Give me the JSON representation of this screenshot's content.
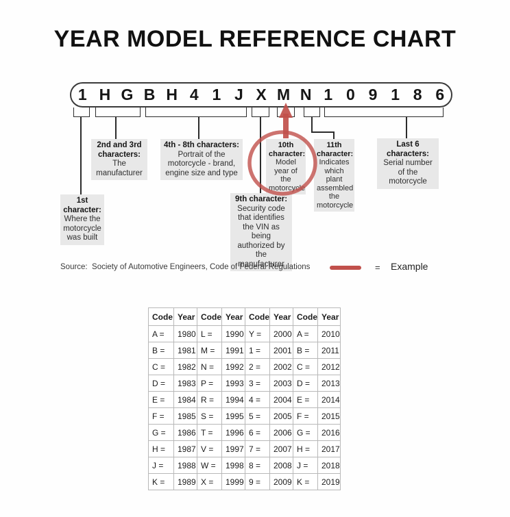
{
  "page": {
    "title": "YEAR MODEL REFERENCE CHART"
  },
  "vin": {
    "characters": [
      "1",
      "H",
      "G",
      "B",
      "H",
      "4",
      "1",
      "J",
      "X",
      "M",
      "N",
      "1",
      "0",
      "9",
      "1",
      "8",
      "6"
    ]
  },
  "annotations": {
    "char1": {
      "heading": "1st character:",
      "body": "Where the motorcycle was built"
    },
    "char2_3": {
      "heading": "2nd and 3rd characters:",
      "body": "The manufacturer"
    },
    "char4_8": {
      "heading": "4th - 8th characters:",
      "body": "Portrait of the motorcycle - brand, engine size and type"
    },
    "char9": {
      "heading": "9th character:",
      "body": "Security code that identifies the VIN as being authorized by the manufacturer"
    },
    "char10": {
      "heading": "10th character:",
      "body": "Model year of the motorcycle"
    },
    "char11": {
      "heading": "11th character:",
      "body": "Indicates which plant assembled the motorcycle"
    },
    "last6": {
      "heading": "Last 6 characters:",
      "body": "Serial number of the motorcycle"
    }
  },
  "source_line": "Source:  Society of Automotive Engineers, Code of Federal Regulations",
  "legend": {
    "equals_sign": "=",
    "label": "Example"
  },
  "colors": {
    "accent_red": "#c1504b",
    "note_background": "#e8e8e8",
    "line_black": "#2b2b2b",
    "table_border": "#b8b8b8"
  },
  "chart_data": {
    "type": "table",
    "headers": [
      "Code",
      "Year",
      "Code",
      "Year",
      "Code",
      "Year",
      "Code",
      "Year"
    ],
    "rows": [
      [
        "A =",
        "1980",
        "L =",
        "1990",
        "Y =",
        "2000",
        "A =",
        "2010"
      ],
      [
        "B =",
        "1981",
        "M =",
        "1991",
        "1 =",
        "2001",
        "B =",
        "2011"
      ],
      [
        "C =",
        "1982",
        "N =",
        "1992",
        "2 =",
        "2002",
        "C =",
        "2012"
      ],
      [
        "D =",
        "1983",
        "P =",
        "1993",
        "3 =",
        "2003",
        "D =",
        "2013"
      ],
      [
        "E =",
        "1984",
        "R =",
        "1994",
        "4 =",
        "2004",
        "E =",
        "2014"
      ],
      [
        "F =",
        "1985",
        "S =",
        "1995",
        "5 =",
        "2005",
        "F =",
        "2015"
      ],
      [
        "G =",
        "1986",
        "T =",
        "1996",
        "6 =",
        "2006",
        "G =",
        "2016"
      ],
      [
        "H =",
        "1987",
        "V =",
        "1997",
        "7 =",
        "2007",
        "H =",
        "2017"
      ],
      [
        "J =",
        "1988",
        "W =",
        "1998",
        "8 =",
        "2008",
        "J =",
        "2018"
      ],
      [
        "K =",
        "1989",
        "X =",
        "1999",
        "9 =",
        "2009",
        "K =",
        "2019"
      ]
    ],
    "highlighted_cells": [
      "M =",
      "1991"
    ],
    "highlighted_vin_character": "M"
  }
}
